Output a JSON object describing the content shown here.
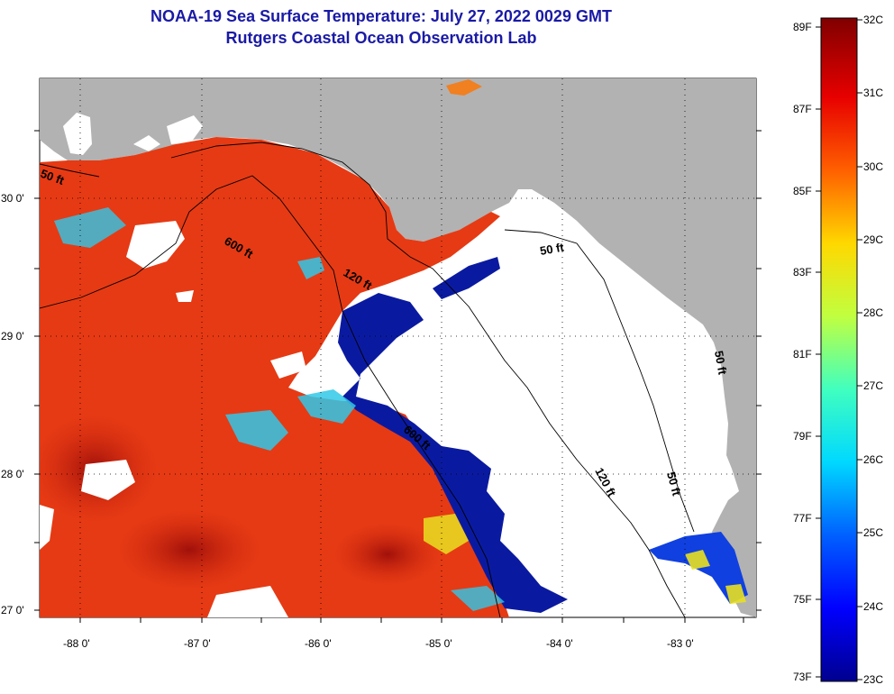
{
  "title_line1": "NOAA-19 Sea Surface Temperature:  July 27, 2022 0029 GMT",
  "title_line2": "Rutgers Coastal Ocean Observation Lab",
  "lat_labels": [
    "30 0'",
    "29 0'",
    "28 0'",
    "27 0'"
  ],
  "lon_labels": [
    "-88 0'",
    "-87 0'",
    "-86 0'",
    "-85 0'",
    "-84 0'",
    "-83 0'"
  ],
  "depth_labels": [
    "50 ft",
    "600 ft",
    "120 ft",
    "50 ft",
    "600 ft",
    "120 ft",
    "50 ft",
    "50 ft"
  ],
  "colorbar": {
    "f_labels": [
      "89F",
      "87F",
      "85F",
      "83F",
      "81F",
      "79F",
      "77F",
      "75F",
      "73F"
    ],
    "c_labels": [
      "32C",
      "31C",
      "30C",
      "29C",
      "28C",
      "27C",
      "26C",
      "25C",
      "24C",
      "23C"
    ]
  },
  "colors": {
    "land": "#b2b2b2",
    "cloud": "#ffffff",
    "title": "#1a1aa6",
    "warm": "#e63a14",
    "hot": "#b0140a",
    "cool": "#0a1aa0"
  }
}
